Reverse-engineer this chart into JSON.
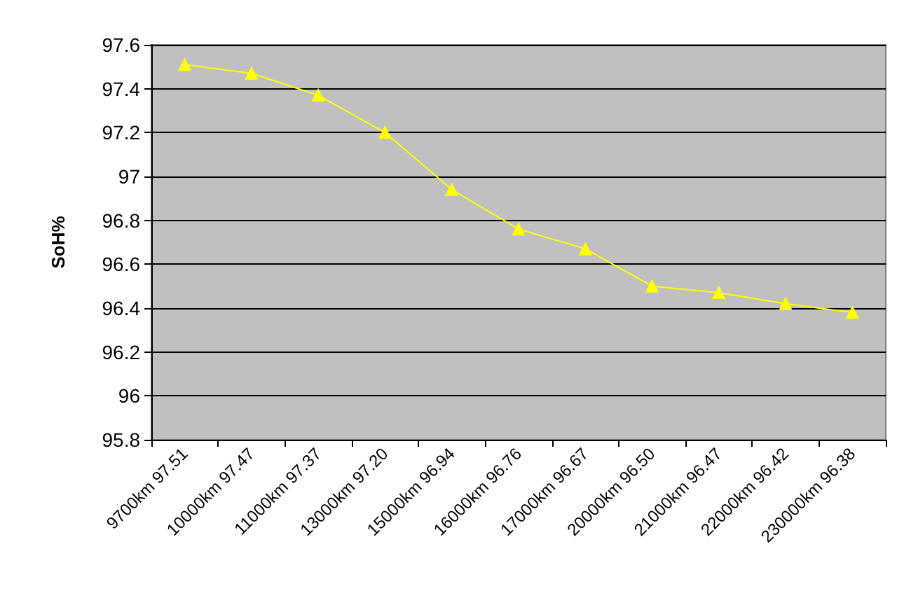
{
  "chart_data": {
    "type": "line",
    "ylabel": "SoH%",
    "categories": [
      "9700km 97.51",
      "10000km 97.47",
      "11000km 97.37",
      "13000km 97.20",
      "15000km 96.94",
      "16000km 96.76",
      "17000km 96.67",
      "20000km 96.50",
      "21000km 96.47",
      "22000km 96.42",
      "230000km 96.38"
    ],
    "series": [
      {
        "color": "#ffff00",
        "values": [
          97.51,
          97.47,
          97.37,
          97.2,
          96.94,
          96.76,
          96.67,
          96.5,
          96.47,
          96.42,
          96.38
        ]
      }
    ],
    "ylim": [
      95.8,
      97.6
    ],
    "yticks": [
      95.8,
      96,
      96.2,
      96.4,
      96.6,
      96.8,
      97,
      97.2,
      97.4,
      97.6
    ],
    "grid": "y",
    "marker": "triangle",
    "line_style": "solid"
  }
}
